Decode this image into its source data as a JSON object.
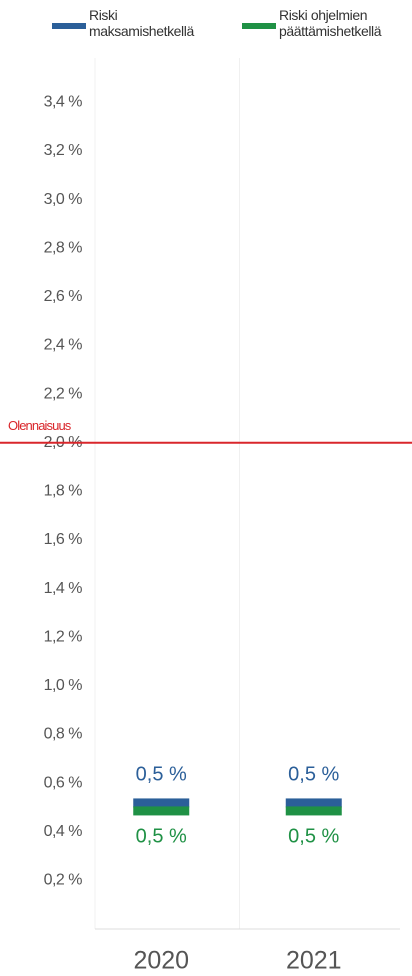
{
  "chart_data": {
    "type": "marker",
    "categories": [
      "2020",
      "2021"
    ],
    "series": [
      {
        "name": "Riski maksamishetkellä",
        "color": "#2b5f99",
        "values": [
          0.5,
          0.5
        ],
        "value_labels": [
          "0,5 %",
          "0,5 %"
        ]
      },
      {
        "name": "Riski ohjelmien päättämishetkellä",
        "color": "#1f9145",
        "values": [
          0.5,
          0.5
        ],
        "value_labels": [
          "0,5 %",
          "0,5 %"
        ]
      }
    ],
    "reference_line": {
      "label": "Olennaisuus",
      "value": 2.0,
      "color": "#d9262b"
    },
    "ylim": [
      0,
      3.5
    ],
    "yticks": [
      {
        "value": 0.2,
        "label": "0,2 %"
      },
      {
        "value": 0.4,
        "label": "0,4 %"
      },
      {
        "value": 0.6,
        "label": "0,6 %"
      },
      {
        "value": 0.8,
        "label": "0,8 %"
      },
      {
        "value": 1.0,
        "label": "1,0 %"
      },
      {
        "value": 1.2,
        "label": "1,2 %"
      },
      {
        "value": 1.4,
        "label": "1,4 %"
      },
      {
        "value": 1.6,
        "label": "1,6 %"
      },
      {
        "value": 1.8,
        "label": "1,8 %"
      },
      {
        "value": 2.0,
        "label": "2,0 %"
      },
      {
        "value": 2.2,
        "label": "2,2 %"
      },
      {
        "value": 2.4,
        "label": "2,4 %"
      },
      {
        "value": 2.6,
        "label": "2,6 %"
      },
      {
        "value": 2.8,
        "label": "2,8 %"
      },
      {
        "value": 3.0,
        "label": "3,0 %"
      },
      {
        "value": 3.2,
        "label": "3,2 %"
      },
      {
        "value": 3.4,
        "label": "3,4 %"
      }
    ],
    "legend": "top"
  }
}
